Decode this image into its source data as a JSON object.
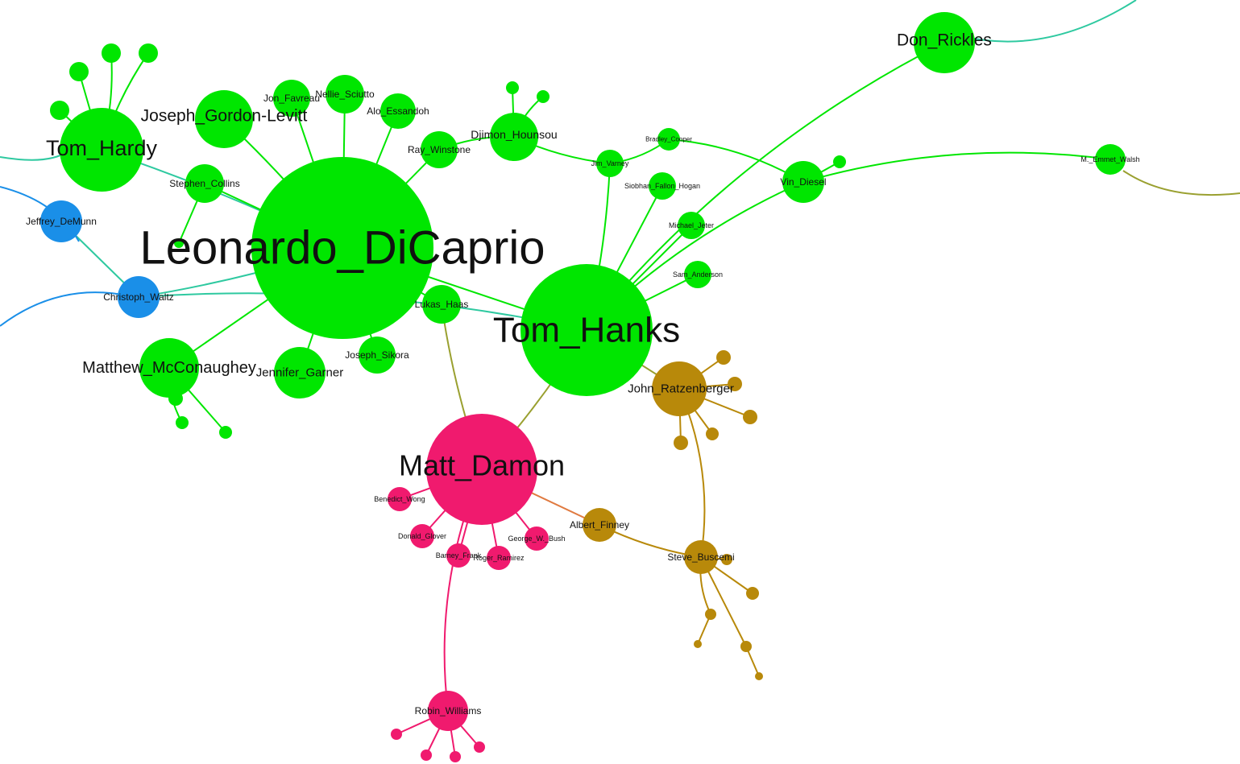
{
  "graph": {
    "colors": {
      "green": "#00e600",
      "blue": "#1a8fe8",
      "pink": "#f01a6e",
      "gold": "#b8890a",
      "edge_teal": "#2ec9a0",
      "edge_olive": "#9aa030",
      "edge_orange": "#e07a40"
    },
    "nodes": [
      {
        "id": "n0",
        "label": "Leonardo_DiCaprio",
        "group": "green"
      },
      {
        "id": "n1",
        "label": "Tom_Hanks",
        "group": "green"
      },
      {
        "id": "n2",
        "label": "Matt_Damon",
        "group": "pink"
      },
      {
        "id": "n3",
        "label": "Tom_Hardy",
        "group": "green"
      },
      {
        "id": "n4",
        "label": "Joseph_Gordon-Levitt",
        "group": "green"
      },
      {
        "id": "n5",
        "label": "Don_Rickles",
        "group": "green"
      },
      {
        "id": "n6",
        "label": "Matthew_McConaughey",
        "group": "green"
      },
      {
        "id": "n7",
        "label": "Jennifer_Garner",
        "group": "green"
      },
      {
        "id": "n8",
        "label": "Djimon_Hounsou",
        "group": "green"
      },
      {
        "id": "n9",
        "label": "John_Ratzenberger",
        "group": "gold"
      },
      {
        "id": "n10",
        "label": "Steve_Buscemi",
        "group": "gold"
      },
      {
        "id": "n11",
        "label": "Albert_Finney",
        "group": "gold"
      },
      {
        "id": "n12",
        "label": "Robin_Williams",
        "group": "pink"
      },
      {
        "id": "n13",
        "label": "Jeffrey_DeMunn",
        "group": "blue"
      },
      {
        "id": "n14",
        "label": "Christoph_Waltz",
        "group": "blue"
      },
      {
        "id": "n15",
        "label": "Stephen_Collins",
        "group": "green"
      },
      {
        "id": "n16",
        "label": "Jon_Favreau",
        "group": "green"
      },
      {
        "id": "n17",
        "label": "Nellie_Sciutto",
        "group": "green"
      },
      {
        "id": "n18",
        "label": "Alo_Essandoh",
        "group": "green"
      },
      {
        "id": "n19",
        "label": "Ray_Winstone",
        "group": "green"
      },
      {
        "id": "n20",
        "label": "Lukas_Haas",
        "group": "green"
      },
      {
        "id": "n21",
        "label": "Joseph_Sikora",
        "group": "green"
      },
      {
        "id": "n22",
        "label": "Vin_Diesel",
        "group": "green"
      },
      {
        "id": "n23",
        "label": "M._Emmet_Walsh",
        "group": "green"
      },
      {
        "id": "n24",
        "label": "Jim_Varney",
        "group": "green"
      },
      {
        "id": "n25",
        "label": "Bradley_Cooper",
        "group": "green"
      },
      {
        "id": "n26",
        "label": "Siobhan_Fallon_Hogan",
        "group": "green"
      },
      {
        "id": "n27",
        "label": "Michael_Jeter",
        "group": "green"
      },
      {
        "id": "n28",
        "label": "Sam_Anderson",
        "group": "green"
      },
      {
        "id": "n29",
        "label": "Benedict_Wong",
        "group": "pink"
      },
      {
        "id": "n30",
        "label": "Donald_Glover",
        "group": "pink"
      },
      {
        "id": "n31",
        "label": "Barney_Frank",
        "group": "pink"
      },
      {
        "id": "n32",
        "label": "Roger_Ramirez",
        "group": "pink"
      },
      {
        "id": "n33",
        "label": "George_W._Bush",
        "group": "pink"
      },
      {
        "id": "n34",
        "label": "",
        "group": "green"
      },
      {
        "id": "n35",
        "label": "",
        "group": "green"
      },
      {
        "id": "n36",
        "label": "",
        "group": "green"
      },
      {
        "id": "n37",
        "label": "",
        "group": "green"
      },
      {
        "id": "n38",
        "label": "",
        "group": "green"
      },
      {
        "id": "n39",
        "label": "",
        "group": "green"
      },
      {
        "id": "n40",
        "label": "",
        "group": "green"
      },
      {
        "id": "n41",
        "label": "",
        "group": "green"
      },
      {
        "id": "n42",
        "label": "",
        "group": "green"
      },
      {
        "id": "n43",
        "label": "",
        "group": "green"
      },
      {
        "id": "n44",
        "label": "",
        "group": "green"
      },
      {
        "id": "n45",
        "label": "",
        "group": "gold"
      },
      {
        "id": "n46",
        "label": "",
        "group": "gold"
      },
      {
        "id": "n47",
        "label": "",
        "group": "gold"
      },
      {
        "id": "n48",
        "label": "",
        "group": "gold"
      },
      {
        "id": "n49",
        "label": "",
        "group": "gold"
      },
      {
        "id": "n50",
        "label": "",
        "group": "gold"
      },
      {
        "id": "n51",
        "label": "",
        "group": "gold"
      },
      {
        "id": "n52",
        "label": "",
        "group": "gold"
      },
      {
        "id": "n53",
        "label": "",
        "group": "gold"
      },
      {
        "id": "n54",
        "label": "",
        "group": "gold"
      },
      {
        "id": "n55",
        "label": "",
        "group": "gold"
      },
      {
        "id": "n56",
        "label": "",
        "group": "pink"
      },
      {
        "id": "n57",
        "label": "",
        "group": "pink"
      },
      {
        "id": "n58",
        "label": "",
        "group": "pink"
      },
      {
        "id": "n59",
        "label": "",
        "group": "pink"
      }
    ]
  }
}
